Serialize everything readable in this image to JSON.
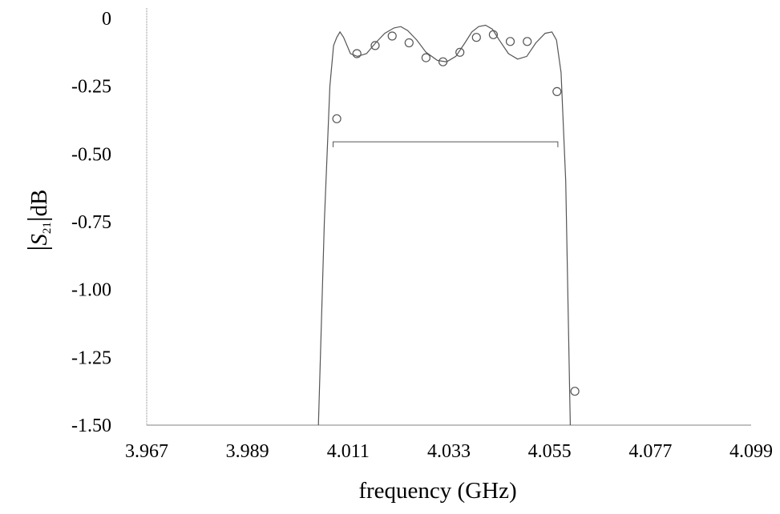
{
  "chart_data": {
    "type": "line",
    "xlabel": "frequency (GHz)",
    "ylabel_parts": {
      "left_bar": "|",
      "symbol": "S",
      "subscript": "21",
      "right_bar": "|",
      "unit": "dB"
    },
    "x_ticks": [
      "3.967",
      "3.989",
      "4.011",
      "4.033",
      "4.055",
      "4.077",
      "4.099"
    ],
    "x_tick_values": [
      3.967,
      3.989,
      4.011,
      4.033,
      4.055,
      4.077,
      4.099
    ],
    "y_ticks": [
      "0",
      "-0.25",
      "-0.50",
      "-0.75",
      "-1.00",
      "-1.25",
      "-1.50"
    ],
    "y_tick_values": [
      0,
      -0.25,
      -0.5,
      -0.75,
      -1.0,
      -1.25,
      -1.5
    ],
    "xlim": [
      3.967,
      4.099
    ],
    "ylim": [
      -1.5,
      0
    ],
    "grid": false,
    "colors": {
      "curve": "#555555",
      "markers": "#555555",
      "axes": "#808080"
    },
    "series": [
      {
        "style": "line",
        "x": [
          4.0045,
          4.0058,
          4.007,
          4.0078,
          4.0085,
          4.0092,
          4.01,
          4.0115,
          4.013,
          4.015,
          4.017,
          4.019,
          4.021,
          4.0225,
          4.024,
          4.026,
          4.028,
          4.0305,
          4.0325,
          4.0345,
          4.0365,
          4.038,
          4.0395,
          4.041,
          4.0425,
          4.044,
          4.046,
          4.048,
          4.05,
          4.052,
          4.054,
          4.0555,
          4.0565,
          4.0575,
          4.0585,
          4.0595
        ],
        "y": [
          -1.5,
          -0.75,
          -0.25,
          -0.1,
          -0.07,
          -0.05,
          -0.07,
          -0.13,
          -0.14,
          -0.13,
          -0.09,
          -0.055,
          -0.035,
          -0.03,
          -0.045,
          -0.08,
          -0.125,
          -0.155,
          -0.16,
          -0.14,
          -0.09,
          -0.05,
          -0.03,
          -0.025,
          -0.04,
          -0.08,
          -0.13,
          -0.15,
          -0.14,
          -0.09,
          -0.055,
          -0.05,
          -0.08,
          -0.2,
          -0.6,
          -1.5
        ]
      },
      {
        "style": "markers",
        "x": [
          4.0085,
          4.0129,
          4.0169,
          4.0206,
          4.0243,
          4.028,
          4.0317,
          4.0354,
          4.039,
          4.0427,
          4.0464,
          4.0501,
          4.0566,
          4.0605
        ],
        "y": [
          -0.37,
          -0.13,
          -0.1,
          -0.065,
          -0.09,
          -0.145,
          -0.16,
          -0.125,
          -0.07,
          -0.06,
          -0.085,
          -0.085,
          -0.27,
          -1.375
        ]
      },
      {
        "style": "bracket",
        "x": [
          4.0077,
          4.0568
        ],
        "y": [
          -0.455,
          -0.455
        ],
        "end_tick_bottom": -0.475
      }
    ]
  }
}
